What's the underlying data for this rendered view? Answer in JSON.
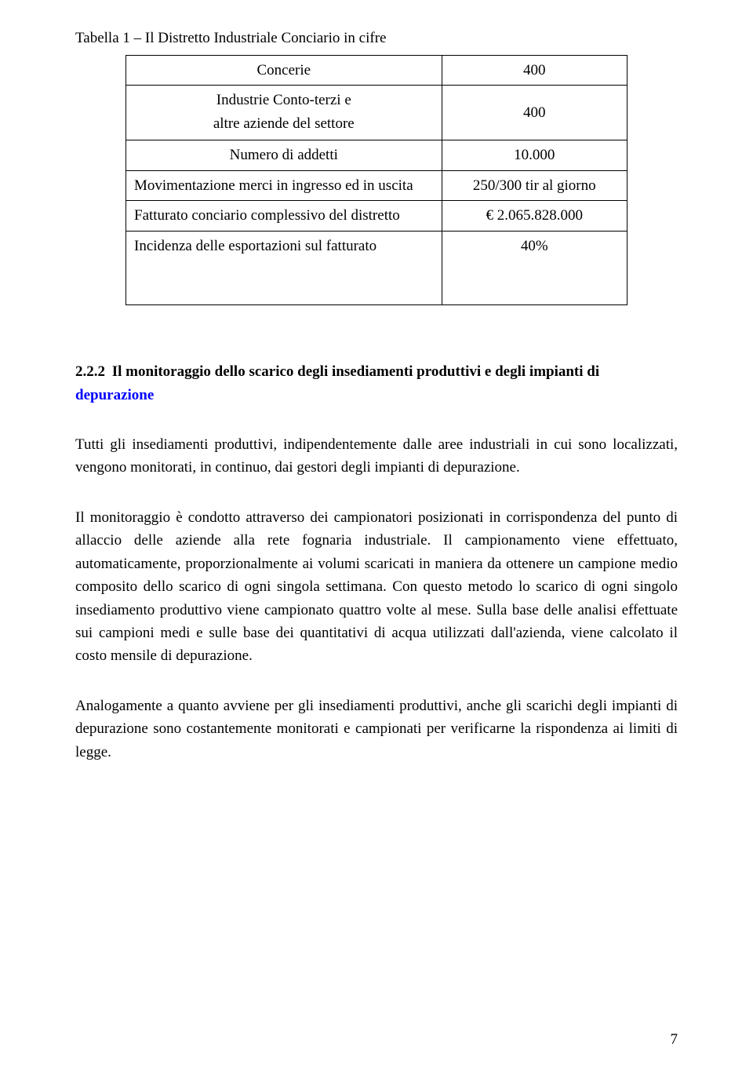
{
  "table_title": "Tabella 1 – Il Distretto Industriale Conciario in cifre",
  "table": {
    "rows": [
      {
        "label_center": "Concerie",
        "value": "400"
      },
      {
        "label_line1": "Industrie Conto-terzi e",
        "label_line2": "altre aziende del settore",
        "value": "400"
      },
      {
        "label_center": "Numero di addetti",
        "value": "10.000"
      },
      {
        "label": "Movimentazione merci in ingresso ed in uscita",
        "value": "250/300 tir al giorno"
      },
      {
        "label": "Fatturato conciario complessivo del distretto",
        "value": "€ 2.065.828.000"
      },
      {
        "label": "Incidenza delle esportazioni sul fatturato",
        "value": "40%"
      }
    ]
  },
  "subsection": {
    "number": "2.2.2",
    "title_line1": "Il monitoraggio dello scarico degli insediamenti produttivi e degli impianti di",
    "title_line2": "depurazione"
  },
  "paragraphs": {
    "p1": "Tutti gli insediamenti produttivi, indipendentemente dalle aree industriali in cui sono localizzati, vengono monitorati, in continuo, dai gestori degli impianti di depurazione.",
    "p2": "Il monitoraggio è condotto attraverso dei campionatori posizionati in corrispondenza del punto di allaccio delle aziende alla rete fognaria industriale. Il campionamento viene effettuato, automaticamente, proporzionalmente ai volumi scaricati in maniera da ottenere un campione medio composito dello scarico di ogni singola settimana. Con questo metodo lo scarico di ogni singolo insediamento produttivo viene campionato quattro volte al mese. Sulla base delle analisi effettuate sui campioni medi e sulle base dei quantitativi di acqua utilizzati dall'azienda, viene calcolato il costo mensile di depurazione.",
    "p3": "Analogamente a quanto avviene per gli insediamenti produttivi, anche gli scarichi degli impianti di depurazione sono costantemente monitorati e campionati per verificarne la rispondenza ai limiti di legge."
  },
  "page_number": "7"
}
